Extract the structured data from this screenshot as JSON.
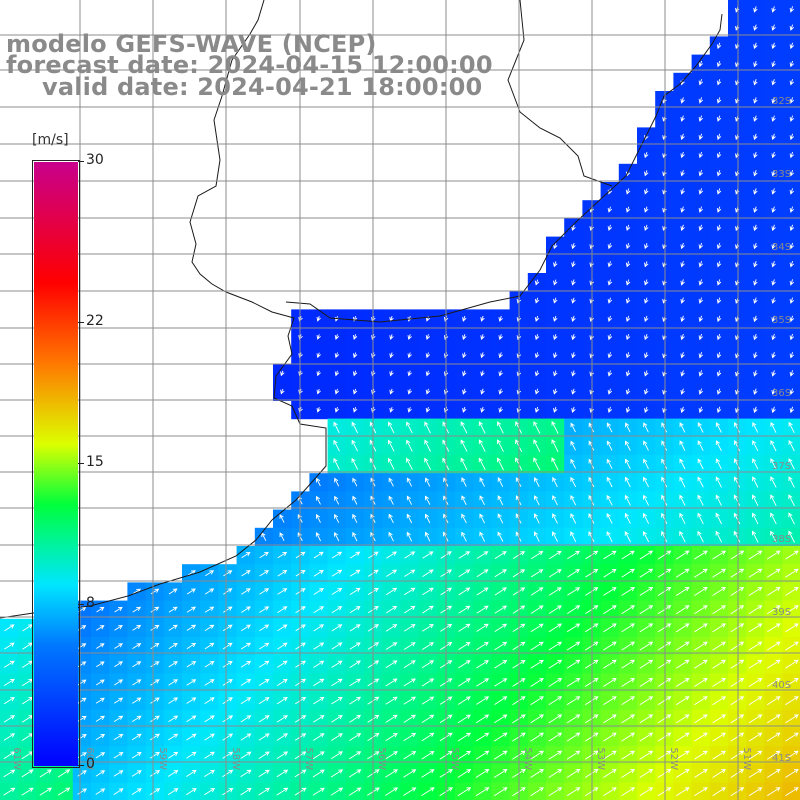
{
  "title": {
    "line1": "modelo GEFS-WAVE (NCEP)",
    "line2": "forecast date: 2024-04-15 12:00:00",
    "line3": "valid date: 2024-04-21 18:00:00"
  },
  "colorbar": {
    "unit": "[m/s]",
    "min": 0,
    "max": 30,
    "ticks": [
      "0",
      "8",
      "15",
      "22",
      "30"
    ],
    "tick_values": [
      0,
      8,
      15,
      22,
      30
    ]
  },
  "map": {
    "variable": "wind speed and direction",
    "lon_range_deg": [
      -62,
      -51
    ],
    "lat_range_deg": [
      -41.5,
      -30.5
    ],
    "lat_labels": [
      "32S",
      "33S",
      "34S",
      "35S",
      "36S",
      "37S",
      "38S",
      "39S",
      "40S",
      "41S"
    ],
    "lon_labels": [
      "61W",
      "60W",
      "59W",
      "58W",
      "57W",
      "56W",
      "55W",
      "54W",
      "53W",
      "52W",
      "51W"
    ],
    "colors": {
      "land": "#ffffff",
      "grid": "#8c8c8c",
      "coast": "#1a1a1a",
      "arrows": "#ffffff",
      "labels": "#8a8a8a"
    }
  }
}
